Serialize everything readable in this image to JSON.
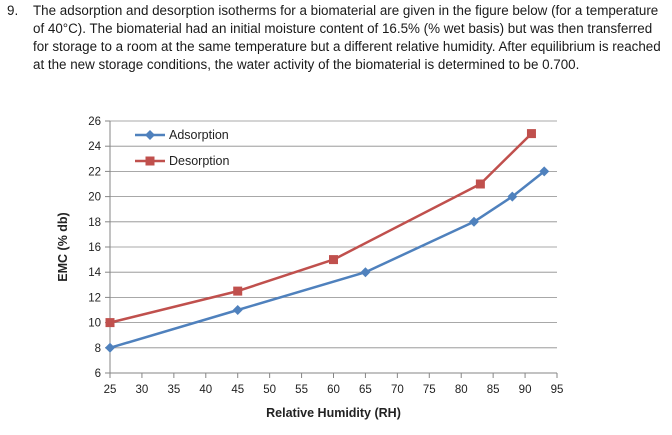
{
  "question": {
    "number": "9.",
    "text": "The adsorption and desorption isotherms for a biomaterial are given in the figure below (for a temperature of 40°C). The biomaterial had an initial moisture content of 16.5% (% wet basis) but was then transferred for storage to a room at the same temperature but a different relative humidity. After equilibrium is reached at the new storage conditions, the water activity of the biomaterial is determined to be 0.700."
  },
  "chart_data": {
    "type": "line",
    "title": "",
    "xlabel": "Relative Humidity (RH)",
    "ylabel": "EMC (% db)",
    "xlim": [
      25,
      95
    ],
    "ylim": [
      6,
      26
    ],
    "xticks": [
      25,
      30,
      35,
      40,
      45,
      50,
      55,
      60,
      65,
      70,
      75,
      80,
      85,
      90,
      95
    ],
    "yticks": [
      6,
      8,
      10,
      12,
      14,
      16,
      18,
      20,
      22,
      24,
      26
    ],
    "grid": "horizontal",
    "legend": "top-left",
    "series": [
      {
        "name": "Adsorption",
        "color": "#4F81BD",
        "marker": "diamond",
        "x": [
          25,
          45,
          65,
          82,
          88,
          93
        ],
        "y": [
          8,
          11,
          14,
          18,
          20,
          22
        ]
      },
      {
        "name": "Desorption",
        "color": "#C0504D",
        "marker": "square",
        "x": [
          25,
          45,
          60,
          83,
          91
        ],
        "y": [
          10,
          12.5,
          15,
          21,
          25
        ]
      }
    ]
  }
}
